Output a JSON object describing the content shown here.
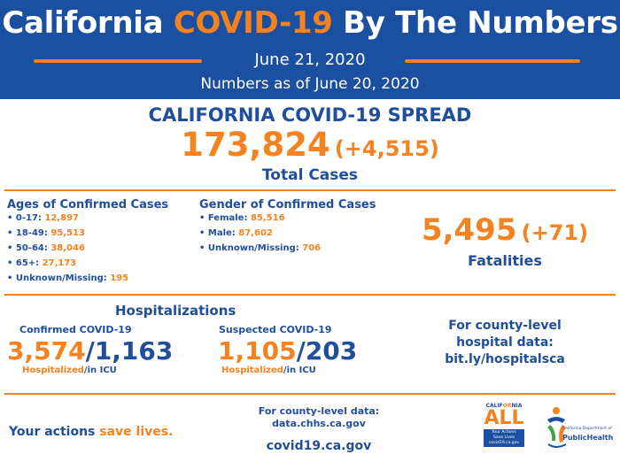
{
  "header": {
    "title_part1": "California ",
    "title_highlight": "COVID-19",
    "title_part2": " By The Numbers",
    "date": "June 21, 2020",
    "as_of": "Numbers as of June 20, 2020"
  },
  "spread": {
    "title": "CALIFORNIA COVID-19 SPREAD",
    "total_cases": "173,824",
    "total_delta": "(+4,515)",
    "total_label": "Total Cases"
  },
  "ages": {
    "title": "Ages of Confirmed Cases",
    "items": [
      {
        "label": "• 0-17: ",
        "value": "12,897"
      },
      {
        "label": "• 18-49: ",
        "value": "95,513"
      },
      {
        "label": "• 50-64: ",
        "value": "38,046"
      },
      {
        "label": "• 65+: ",
        "value": "27,173"
      },
      {
        "label": "• Unknown/Missing: ",
        "value": "195"
      }
    ]
  },
  "gender": {
    "title": "Gender of Confirmed Cases",
    "items": [
      {
        "label": "• Female: ",
        "value": "85,516"
      },
      {
        "label": "• Male: ",
        "value": "87,602"
      },
      {
        "label": "• Unknown/Missing: ",
        "value": "706"
      }
    ]
  },
  "fatalities": {
    "count": "5,495",
    "delta": "(+71)",
    "label": "Fatalities"
  },
  "hospitalizations": {
    "title": "Hospitalizations",
    "confirmed": {
      "label": "Confirmed COVID-19",
      "hospitalized": "3,574",
      "slash": "/",
      "icu": "1,163",
      "cap_hosp": "Hospitalized",
      "cap_icu": "/in ICU"
    },
    "suspected": {
      "label": "Suspected COVID-19",
      "hospitalized": "1,105",
      "slash": "/",
      "icu": "203",
      "cap_hosp": "Hospitalized",
      "cap_icu": "/in ICU"
    },
    "county_line1": "For county-level",
    "county_line2": "hospital data:",
    "county_link": "bit.ly/hospitalsca"
  },
  "footer": {
    "actions_part1": "Your actions ",
    "actions_highlight": "save lives.",
    "county_data_line1": "For county-level data:",
    "county_data_line2": "data.chhs.ca.gov",
    "site": "covid19.ca.gov",
    "ca_all_top1": "CALIF",
    "ca_all_top_o": "OR",
    "ca_all_top2": "NIA",
    "ca_all_main": "ALL",
    "ca_all_box1": "Your Actions",
    "ca_all_box2": "Save Lives",
    "ca_all_box3": "covid19.ca.gov",
    "cdph_small": "California Department of",
    "cdph_main": "PublicHealth"
  },
  "colors": {
    "brand_blue": "#1b4fa0",
    "accent_orange": "#f58220"
  }
}
